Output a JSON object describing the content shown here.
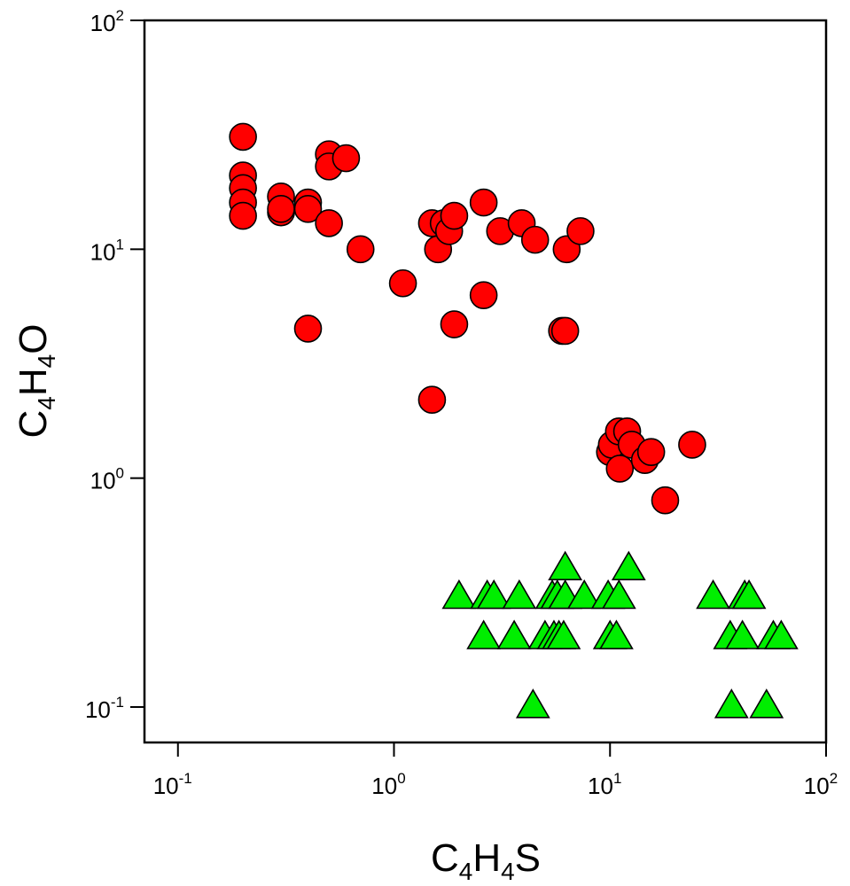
{
  "chart_data": {
    "type": "scatter",
    "xscale": "log",
    "yscale": "log",
    "xlim": [
      0.07,
      100
    ],
    "ylim": [
      0.07,
      100
    ],
    "grid": false,
    "legend": "none",
    "xlabel_parts": [
      {
        "text": "C",
        "sub": false
      },
      {
        "text": "4",
        "sub": true
      },
      {
        "text": "H",
        "sub": false
      },
      {
        "text": "4",
        "sub": true
      },
      {
        "text": "S",
        "sub": false
      }
    ],
    "ylabel_parts": [
      {
        "text": "C",
        "sub": false
      },
      {
        "text": "4",
        "sub": true
      },
      {
        "text": "H",
        "sub": false
      },
      {
        "text": "4",
        "sub": true
      },
      {
        "text": "O",
        "sub": false
      }
    ],
    "x_ticks": [
      {
        "value": 0.1,
        "base": "10",
        "exp": "-1"
      },
      {
        "value": 1,
        "base": "10",
        "exp": "0"
      },
      {
        "value": 10,
        "base": "10",
        "exp": "1"
      },
      {
        "value": 100,
        "base": "10",
        "exp": "2"
      }
    ],
    "y_ticks": [
      {
        "value": 0.1,
        "base": "10",
        "exp": "-1"
      },
      {
        "value": 1,
        "base": "10",
        "exp": "0"
      },
      {
        "value": 10,
        "base": "10",
        "exp": "1"
      },
      {
        "value": 100,
        "base": "10",
        "exp": "2"
      }
    ],
    "series": [
      {
        "marker": "circle",
        "color": "#ff0000",
        "points": [
          [
            0.2,
            31
          ],
          [
            0.2,
            21
          ],
          [
            0.2,
            18.5
          ],
          [
            0.2,
            16
          ],
          [
            0.2,
            14
          ],
          [
            0.3,
            17
          ],
          [
            0.3,
            14.5
          ],
          [
            0.3,
            15
          ],
          [
            0.4,
            16
          ],
          [
            0.4,
            15
          ],
          [
            0.4,
            4.5
          ],
          [
            0.5,
            26
          ],
          [
            0.5,
            23
          ],
          [
            0.5,
            13
          ],
          [
            0.6,
            25
          ],
          [
            0.7,
            10
          ],
          [
            1.1,
            7.1
          ],
          [
            1.5,
            13
          ],
          [
            1.5,
            2.2
          ],
          [
            1.6,
            10
          ],
          [
            1.7,
            13
          ],
          [
            1.8,
            12
          ],
          [
            1.9,
            14
          ],
          [
            1.9,
            4.7
          ],
          [
            2.6,
            16
          ],
          [
            2.6,
            6.3
          ],
          [
            3.1,
            12
          ],
          [
            3.9,
            13
          ],
          [
            4.5,
            11
          ],
          [
            6.0,
            4.4
          ],
          [
            6.2,
            4.4
          ],
          [
            6.3,
            10
          ],
          [
            7.3,
            12
          ],
          [
            10.0,
            1.3
          ],
          [
            10.2,
            1.4
          ],
          [
            11.0,
            1.6
          ],
          [
            11.1,
            1.1
          ],
          [
            12.0,
            1.6
          ],
          [
            12.6,
            1.4
          ],
          [
            14.5,
            1.2
          ],
          [
            15.5,
            1.3
          ],
          [
            18.0,
            0.8
          ],
          [
            24.0,
            1.4
          ]
        ]
      },
      {
        "marker": "triangle",
        "color": "#00ee00",
        "points": [
          [
            2.0,
            0.3
          ],
          [
            2.7,
            0.3
          ],
          [
            2.9,
            0.3
          ],
          [
            3.8,
            0.3
          ],
          [
            5.4,
            0.3
          ],
          [
            5.7,
            0.3
          ],
          [
            6.2,
            0.3
          ],
          [
            7.6,
            0.3
          ],
          [
            9.8,
            0.3
          ],
          [
            11.0,
            0.3
          ],
          [
            6.2,
            0.4
          ],
          [
            12.2,
            0.4
          ],
          [
            2.6,
            0.2
          ],
          [
            3.6,
            0.2
          ],
          [
            5.0,
            0.2
          ],
          [
            5.5,
            0.2
          ],
          [
            5.8,
            0.2
          ],
          [
            6.1,
            0.2
          ],
          [
            10.0,
            0.2
          ],
          [
            10.7,
            0.2
          ],
          [
            4.4,
            0.1
          ],
          [
            30.0,
            0.3
          ],
          [
            42.0,
            0.3
          ],
          [
            44.0,
            0.3
          ],
          [
            36.0,
            0.2
          ],
          [
            41.0,
            0.2
          ],
          [
            57.0,
            0.2
          ],
          [
            62.0,
            0.2
          ],
          [
            36.5,
            0.1
          ],
          [
            53.0,
            0.1
          ]
        ]
      }
    ]
  }
}
